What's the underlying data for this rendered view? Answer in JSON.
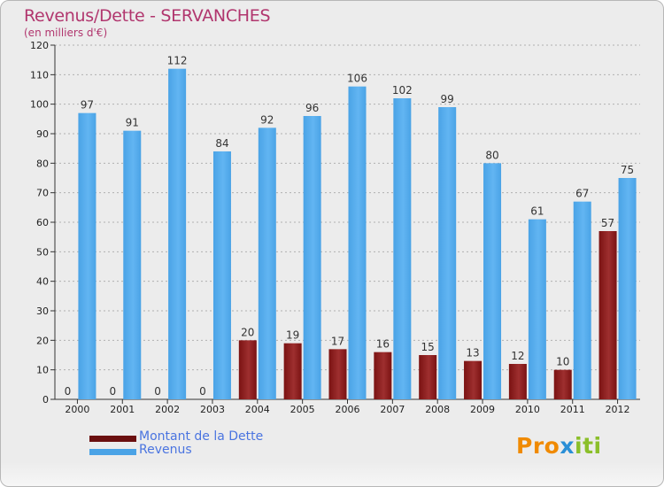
{
  "title": "Revenus/Dette - SERVANCHES",
  "subtitle": "(en milliers d'€)",
  "logo": {
    "text": "Proxiti",
    "letters": [
      {
        "ch": "P",
        "color": "#f08a00"
      },
      {
        "ch": "r",
        "color": "#f08a00"
      },
      {
        "ch": "o",
        "color": "#f08a00"
      },
      {
        "ch": "x",
        "color": "#2a8fd6"
      },
      {
        "ch": "i",
        "color": "#8bbf2a"
      },
      {
        "ch": "t",
        "color": "#8bbf2a"
      },
      {
        "ch": "i",
        "color": "#8bbf2a"
      }
    ]
  },
  "colors": {
    "dette": "#7a1212",
    "dette_light": "#9e2f2f",
    "revenus": "#4aa3e6",
    "revenus_light": "#62b5f2",
    "axis_text": "#222222",
    "grid": "#b0b0b0",
    "label": "#333333"
  },
  "chart_data": {
    "type": "bar",
    "title": "Revenus/Dette - SERVANCHES",
    "subtitle": "(en milliers d'€)",
    "categories": [
      "2000",
      "2001",
      "2002",
      "2003",
      "2004",
      "2005",
      "2006",
      "2007",
      "2008",
      "2009",
      "2010",
      "2011",
      "2012"
    ],
    "series": [
      {
        "name": "Montant de la Dette",
        "values": [
          0,
          0,
          0,
          0,
          20,
          19,
          17,
          16,
          15,
          13,
          12,
          10,
          57
        ]
      },
      {
        "name": "Revenus",
        "values": [
          97,
          91,
          112,
          84,
          92,
          96,
          106,
          102,
          99,
          80,
          61,
          67,
          75
        ]
      }
    ],
    "ylim": [
      0,
      120
    ],
    "yticks": [
      0,
      10,
      20,
      30,
      40,
      50,
      60,
      70,
      80,
      90,
      100,
      110,
      120
    ],
    "grid": true,
    "legend": "bottom-left"
  }
}
